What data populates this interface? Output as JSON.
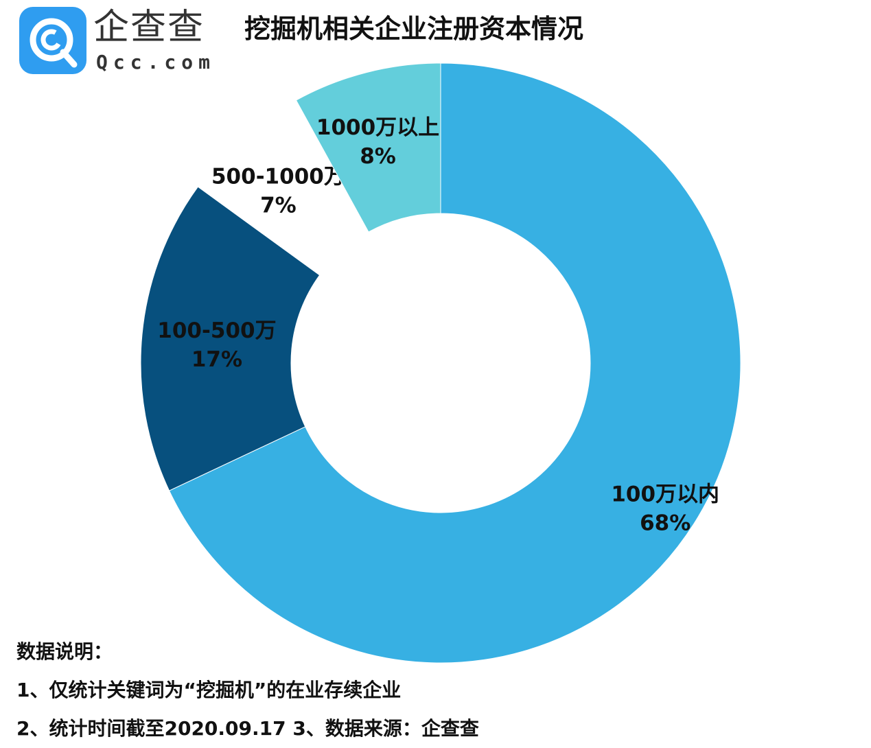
{
  "brand": {
    "name_cn": "企查查",
    "name_en": "Qcc.com"
  },
  "title": "挖掘机相关企业注册资本情况",
  "chart_data": {
    "type": "pie",
    "subtype": "donut",
    "title": "挖掘机相关企业注册资本情况",
    "slices": [
      {
        "label": "100万以内",
        "value": 68,
        "display": "68%",
        "color": "#37b0e3"
      },
      {
        "label": "100-500万",
        "value": 17,
        "display": "17%",
        "color": "#07507e"
      },
      {
        "label": "500-1000万",
        "value": 7,
        "display": "7%",
        "color": "#ffffff"
      },
      {
        "label": "1000万以上",
        "value": 8,
        "display": "8%",
        "color": "#63cedb"
      }
    ],
    "legend": "none"
  },
  "notes": {
    "heading": "数据说明：",
    "line1": "1、仅统计关键词为“挖掘机”的在业存续企业",
    "line2": "2、统计时间截至2020.09.17    3、数据来源：企查查"
  },
  "colors": {
    "accent": "#2f9df0",
    "text": "#111111"
  }
}
